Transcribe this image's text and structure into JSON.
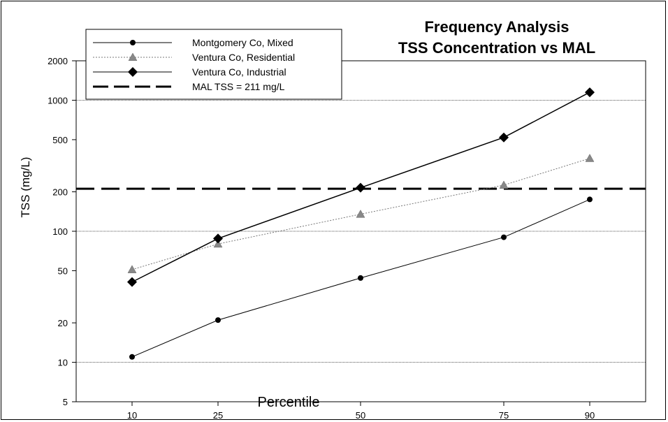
{
  "chart_data": {
    "type": "line",
    "title": "Frequency Analysis",
    "subtitle": "TSS Concentration vs MAL",
    "xlabel": "Percentile",
    "ylabel": "TSS (mg/L)",
    "x_scale": "categorical",
    "y_scale": "log",
    "ylim": [
      5,
      2000
    ],
    "categories": [
      "10",
      "25",
      "50",
      "75",
      "90"
    ],
    "y_ticks": [
      "5",
      "10",
      "20",
      "50",
      "100",
      "200",
      "500",
      "1000",
      "2000"
    ],
    "y_tick_values": [
      5,
      10,
      20,
      50,
      100,
      200,
      500,
      1000,
      2000
    ],
    "gridlines_at": [
      10,
      100,
      1000
    ],
    "legend_position": "top-left",
    "series": [
      {
        "name": "Montgomery Co, Mixed",
        "style": "solid",
        "marker": "circle",
        "color": "#000000",
        "values": [
          11,
          21,
          44,
          90,
          175
        ]
      },
      {
        "name": "Ventura Co, Residential",
        "style": "dotted",
        "marker": "triangle",
        "color": "#888888",
        "values": [
          51,
          80,
          135,
          225,
          360
        ]
      },
      {
        "name": "Ventura Co, Industrial",
        "style": "solid",
        "marker": "diamond",
        "color": "#000000",
        "values": [
          41,
          88,
          215,
          520,
          1150
        ]
      }
    ],
    "reference_line": {
      "name": "MAL TSS = 211 mg/L",
      "value": 211,
      "style": "dashed",
      "color": "#000000"
    }
  }
}
